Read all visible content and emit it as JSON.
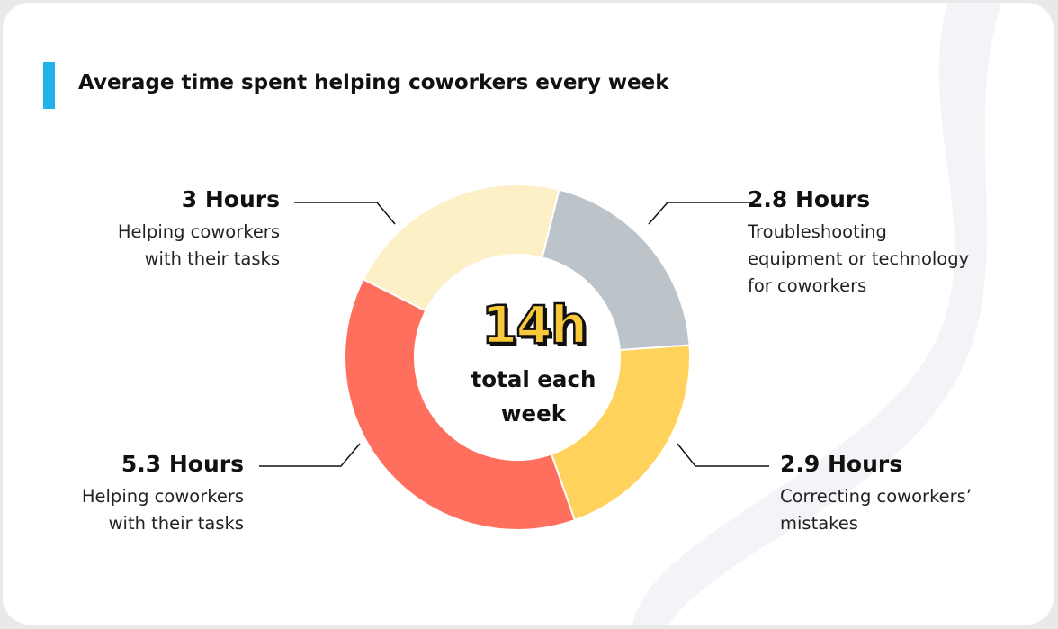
{
  "chart_data": {
    "type": "pie",
    "title": "Average time spent helping coworkers every week",
    "center": {
      "value": "14h",
      "label_line1": "total each",
      "label_line2": "week"
    },
    "slices": [
      {
        "value_label": "3 Hours",
        "value": 3,
        "desc": [
          "Helping coworkers",
          "with their tasks"
        ],
        "color": "#fdf0c6"
      },
      {
        "value_label": "2.8 Hours",
        "value": 2.8,
        "desc": [
          "Troubleshooting",
          "equipment or technology",
          "for coworkers"
        ],
        "color": "#bcc3c9"
      },
      {
        "value_label": "2.9 Hours",
        "value": 2.9,
        "desc": [
          "Correcting coworkers’",
          "mistakes"
        ],
        "color": "#ffd25b"
      },
      {
        "value_label": "5.3 Hours",
        "value": 5.3,
        "desc": [
          "Helping coworkers",
          "with their tasks"
        ],
        "color": "#fe705d"
      }
    ]
  }
}
